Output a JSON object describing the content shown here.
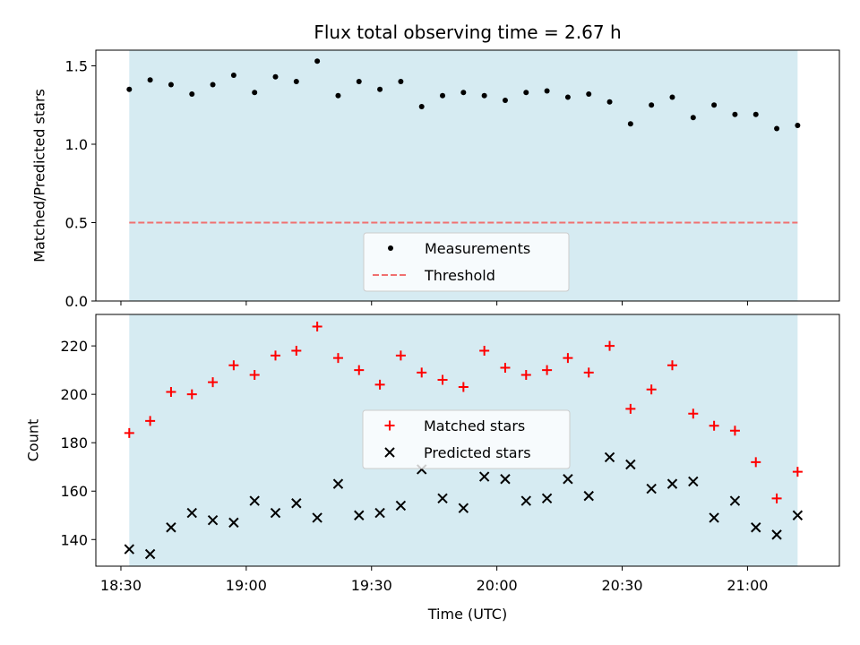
{
  "chart_data": [
    {
      "type": "scatter",
      "title": "Flux total observing time = 2.67 h",
      "ylabel": "Matched/Predicted stars",
      "xlabel": "",
      "ylim": [
        0.0,
        1.6
      ],
      "yticks": [
        0.0,
        0.5,
        1.0,
        1.5
      ],
      "ytick_labels": [
        "0.0",
        "0.5",
        "1.0",
        "1.5"
      ],
      "xlim": [
        "18:24",
        "21:22"
      ],
      "shade_range": [
        "18:32",
        "21:12"
      ],
      "shade_color": "#add8e6",
      "legend": {
        "placement": "lower-center",
        "entries": [
          "Measurements",
          "Threshold"
        ]
      },
      "series": [
        {
          "name": "Measurements",
          "marker": "dot",
          "color": "#000000",
          "x": [
            "18:32",
            "18:37",
            "18:42",
            "18:47",
            "18:52",
            "18:57",
            "19:02",
            "19:07",
            "19:12",
            "19:17",
            "19:22",
            "19:27",
            "19:32",
            "19:37",
            "19:42",
            "19:47",
            "19:52",
            "19:57",
            "20:02",
            "20:07",
            "20:12",
            "20:17",
            "20:22",
            "20:27",
            "20:32",
            "20:37",
            "20:42",
            "20:47",
            "20:52",
            "20:57",
            "21:02",
            "21:07",
            "21:12"
          ],
          "values": [
            1.35,
            1.41,
            1.38,
            1.32,
            1.38,
            1.44,
            1.33,
            1.43,
            1.4,
            1.53,
            1.31,
            1.4,
            1.35,
            1.4,
            1.24,
            1.31,
            1.33,
            1.31,
            1.28,
            1.33,
            1.34,
            1.3,
            1.32,
            1.27,
            1.13,
            1.25,
            1.3,
            1.17,
            1.25,
            1.19,
            1.19,
            1.1,
            1.12
          ]
        },
        {
          "name": "Threshold",
          "marker": "dashed-line",
          "color": "#f07070",
          "x": [
            "18:32",
            "21:12"
          ],
          "values": [
            0.5,
            0.5
          ]
        }
      ]
    },
    {
      "type": "scatter",
      "title": "",
      "ylabel": "Count",
      "xlabel": "Time (UTC)",
      "ylim": [
        129,
        233
      ],
      "yticks": [
        140,
        160,
        180,
        200,
        220
      ],
      "ytick_labels": [
        "140",
        "160",
        "180",
        "200",
        "220"
      ],
      "xlim": [
        "18:24",
        "21:22"
      ],
      "xticks": [
        "18:30",
        "19:00",
        "19:30",
        "20:00",
        "20:30",
        "21:00"
      ],
      "shade_range": [
        "18:32",
        "21:12"
      ],
      "shade_color": "#add8e6",
      "legend": {
        "placement": "center",
        "entries": [
          "Matched stars",
          "Predicted stars"
        ]
      },
      "series": [
        {
          "name": "Matched stars",
          "marker": "plus",
          "color": "#ff0000",
          "x": [
            "18:32",
            "18:37",
            "18:42",
            "18:47",
            "18:52",
            "18:57",
            "19:02",
            "19:07",
            "19:12",
            "19:17",
            "19:22",
            "19:27",
            "19:32",
            "19:37",
            "19:42",
            "19:47",
            "19:52",
            "19:57",
            "20:02",
            "20:07",
            "20:12",
            "20:17",
            "20:22",
            "20:27",
            "20:32",
            "20:37",
            "20:42",
            "20:47",
            "20:52",
            "20:57",
            "21:02",
            "21:07",
            "21:12"
          ],
          "values": [
            184,
            189,
            201,
            200,
            205,
            212,
            208,
            216,
            218,
            228,
            215,
            210,
            204,
            216,
            209,
            206,
            203,
            218,
            211,
            208,
            210,
            215,
            209,
            220,
            194,
            202,
            212,
            192,
            187,
            185,
            172,
            157,
            168
          ]
        },
        {
          "name": "Predicted stars",
          "marker": "x",
          "color": "#000000",
          "x": [
            "18:32",
            "18:37",
            "18:42",
            "18:47",
            "18:52",
            "18:57",
            "19:02",
            "19:07",
            "19:12",
            "19:17",
            "19:22",
            "19:27",
            "19:32",
            "19:37",
            "19:42",
            "19:47",
            "19:52",
            "19:57",
            "20:02",
            "20:07",
            "20:12",
            "20:17",
            "20:22",
            "20:27",
            "20:32",
            "20:37",
            "20:42",
            "20:47",
            "20:52",
            "20:57",
            "21:02",
            "21:07",
            "21:12"
          ],
          "values": [
            136,
            134,
            145,
            151,
            148,
            147,
            156,
            151,
            155,
            149,
            163,
            150,
            151,
            154,
            169,
            157,
            153,
            166,
            165,
            156,
            157,
            165,
            158,
            174,
            171,
            161,
            163,
            164,
            149,
            156,
            145,
            142,
            150
          ]
        }
      ]
    }
  ]
}
